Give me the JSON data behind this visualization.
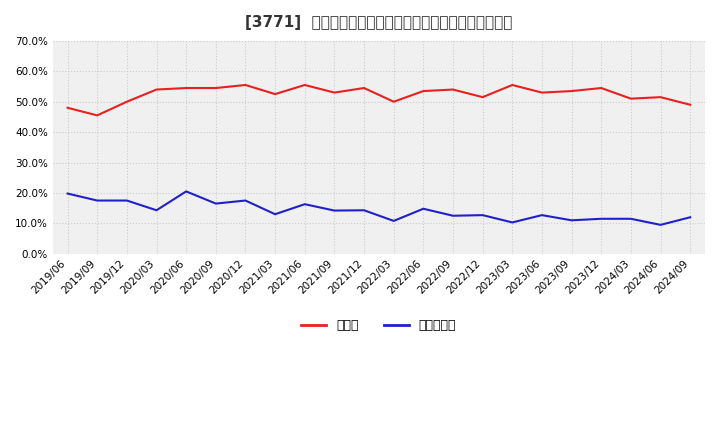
{
  "title": "[3771]  現預金、有利子負債の総資産に対する比率の推移",
  "x_labels": [
    "2019/06",
    "2019/09",
    "2019/12",
    "2020/03",
    "2020/06",
    "2020/09",
    "2020/12",
    "2021/03",
    "2021/06",
    "2021/09",
    "2021/12",
    "2022/03",
    "2022/06",
    "2022/09",
    "2022/12",
    "2023/03",
    "2023/06",
    "2023/09",
    "2023/12",
    "2024/03",
    "2024/06",
    "2024/09"
  ],
  "cash_values": [
    0.48,
    0.455,
    0.5,
    0.54,
    0.545,
    0.545,
    0.555,
    0.525,
    0.555,
    0.53,
    0.545,
    0.5,
    0.535,
    0.54,
    0.515,
    0.555,
    0.53,
    0.535,
    0.545,
    0.51,
    0.515,
    0.49
  ],
  "debt_values": [
    0.198,
    0.175,
    0.175,
    0.143,
    0.205,
    0.165,
    0.175,
    0.13,
    0.163,
    0.142,
    0.143,
    0.108,
    0.148,
    0.125,
    0.127,
    0.103,
    0.127,
    0.11,
    0.115,
    0.115,
    0.095,
    0.12
  ],
  "cash_color": "#e82020",
  "debt_color": "#2020c8",
  "background_color": "#ffffff",
  "plot_background": "#f0f0f0",
  "grid_color": "#cccccc",
  "legend_cash": "現預金",
  "legend_debt": "有利子負債",
  "ylim": [
    0.0,
    0.7
  ],
  "yticks": [
    0.0,
    0.1,
    0.2,
    0.3,
    0.4,
    0.5,
    0.6,
    0.7
  ]
}
